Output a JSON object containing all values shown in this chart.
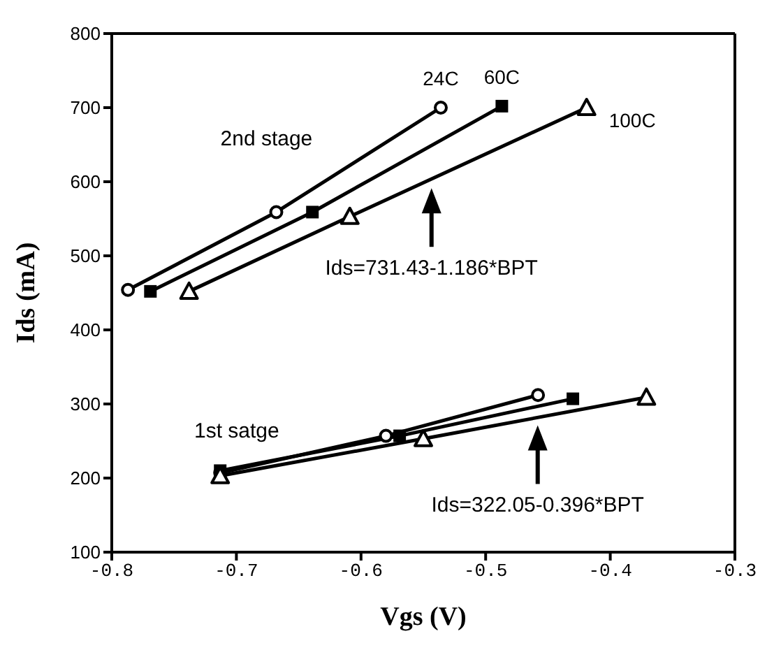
{
  "chart_data": {
    "type": "line",
    "xlabel": "Vgs  (V)",
    "ylabel": "Ids  (mA)",
    "xlim": [
      -0.8,
      -0.3
    ],
    "xticks": [
      -0.8,
      -0.7,
      -0.6,
      -0.5,
      -0.4,
      -0.3
    ],
    "ylim": [
      100,
      800
    ],
    "yticks": [
      100,
      200,
      300,
      400,
      500,
      600,
      700,
      800
    ],
    "line_style": "solid",
    "series": [
      {
        "name": "24C",
        "color": "#000000",
        "marker": "circle",
        "x": [
          -0.787,
          -0.668,
          -0.536
        ],
        "values": [
          454,
          559,
          700
        ]
      },
      {
        "name": "60C",
        "color": "#000000",
        "marker": "square",
        "x": [
          -0.769,
          -0.639,
          -0.487
        ],
        "values": [
          452,
          559,
          702
        ]
      },
      {
        "name": "100C",
        "color": "#000000",
        "marker": "triangle",
        "x": [
          -0.738,
          -0.609,
          -0.419
        ],
        "values": [
          452,
          553,
          700
        ]
      },
      {
        "color": "#000000",
        "marker": "circle",
        "x": [
          -0.713,
          -0.58,
          -0.458
        ],
        "values": [
          207,
          257,
          312
        ]
      },
      {
        "color": "#000000",
        "marker": "square",
        "x": [
          -0.713,
          -0.569,
          -0.43
        ],
        "values": [
          210,
          257,
          307
        ]
      },
      {
        "color": "#000000",
        "marker": "triangle",
        "x": [
          -0.713,
          -0.55,
          -0.371
        ],
        "values": [
          203,
          253,
          309
        ]
      }
    ],
    "annotations": [
      "2nd stage",
      "Ids=731.43-1.186*BPT",
      "1st satge",
      "Ids=322.05-0.396*BPT"
    ]
  }
}
